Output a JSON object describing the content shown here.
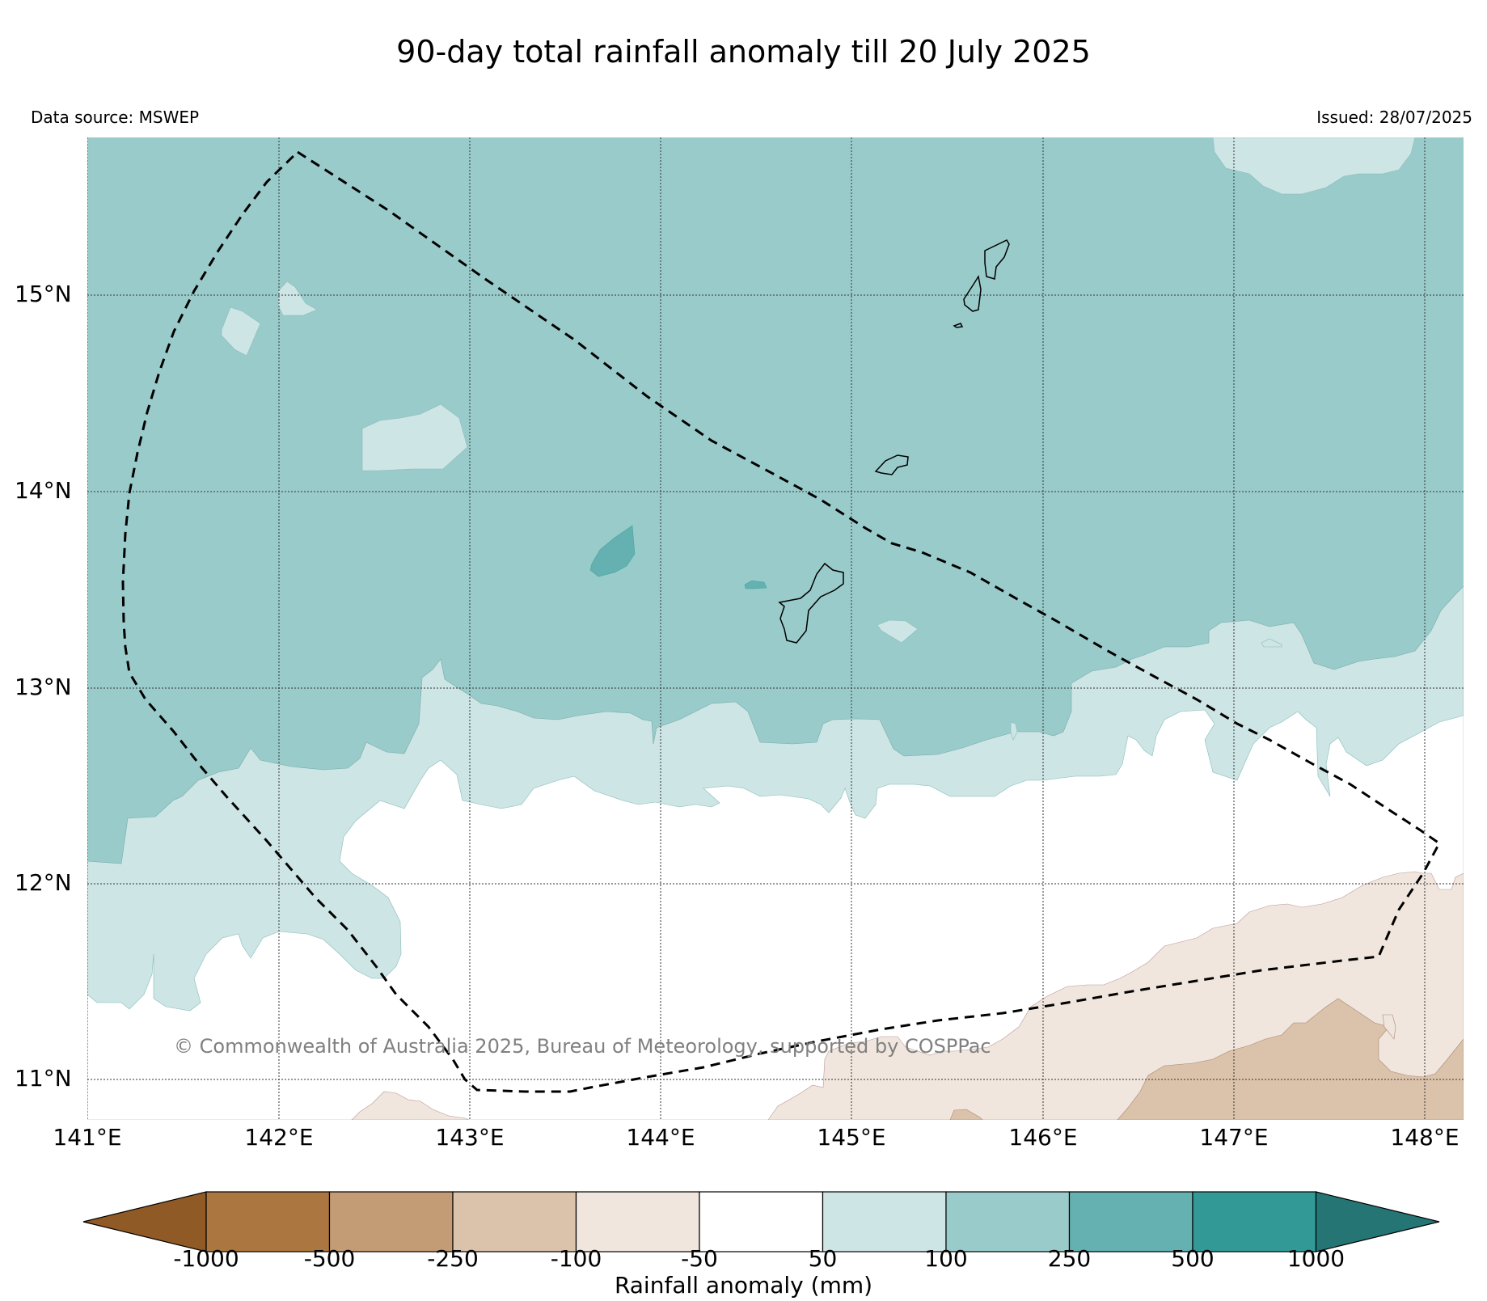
{
  "title": "90-day total rainfall anomaly till 20 July 2025",
  "data_source": "Data source: MSWEP",
  "issued": "Issued: 28/07/2025",
  "copyright": "© Commonwealth of Australia 2025, Bureau of Meteorology, supported by COSPPac",
  "lat_labels": [
    "15°N",
    "14°N",
    "13°N",
    "12°N",
    "11°N"
  ],
  "lon_labels": [
    "141°E",
    "142°E",
    "143°E",
    "144°E",
    "145°E",
    "146°E",
    "147°E",
    "148°E"
  ],
  "colorbar": {
    "label": "Rainfall anomaly (mm)",
    "ticks": [
      "-1000",
      "-500",
      "-250",
      "-100",
      "-50",
      "50",
      "100",
      "250",
      "500",
      "1000"
    ],
    "colors": [
      "#8f5a25",
      "#ab763f",
      "#c39b74",
      "#dbc2aa",
      "#f0e6dd",
      "#ffffff",
      "#cde5e4",
      "#9acbcb",
      "#65b0b1",
      "#329996",
      "#257574"
    ]
  }
}
